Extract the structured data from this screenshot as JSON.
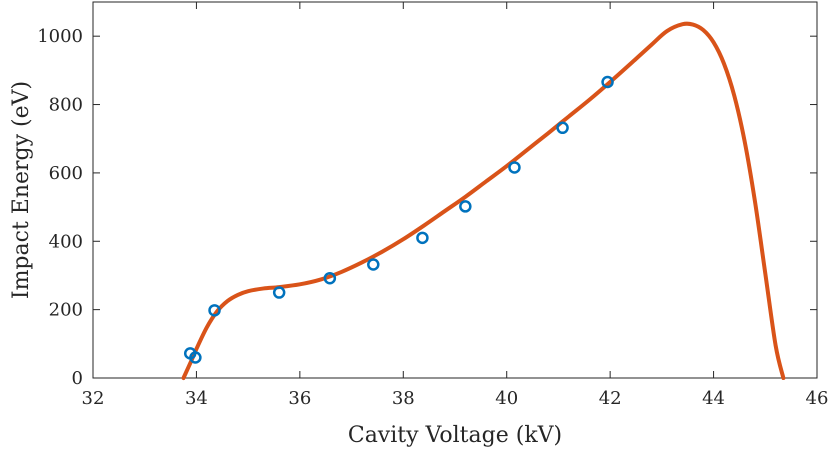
{
  "chart_data": {
    "type": "scatter",
    "title": "",
    "xlabel": "Cavity Voltage (kV)",
    "ylabel": "Impact Energy (eV)",
    "xlim": [
      32,
      46
    ],
    "ylim": [
      0,
      1100
    ],
    "xticks": [
      32,
      34,
      36,
      38,
      40,
      42,
      44,
      46
    ],
    "yticks": [
      0,
      200,
      400,
      600,
      800,
      1000
    ],
    "grid": false,
    "legend": "none",
    "series": [
      {
        "kind": "markers",
        "marker": "circle-open",
        "color": "#0072bd",
        "x": [
          33.88,
          33.98,
          34.35,
          35.6,
          36.58,
          37.42,
          38.37,
          39.2,
          40.15,
          41.08,
          41.95
        ],
        "y": [
          72,
          60,
          198,
          250,
          292,
          332,
          410,
          502,
          616,
          732,
          866
        ]
      },
      {
        "kind": "line",
        "color": "#d95319",
        "x": [
          33.75,
          33.9,
          34.0,
          34.2,
          34.4,
          34.6,
          34.8,
          35.0,
          35.3,
          35.6,
          36.0,
          36.4,
          36.8,
          37.2,
          37.6,
          38.0,
          38.4,
          38.8,
          39.2,
          39.6,
          40.0,
          40.4,
          40.8,
          41.2,
          41.6,
          42.0,
          42.4,
          42.8,
          43.1,
          43.4,
          43.6,
          43.8,
          44.0,
          44.2,
          44.4,
          44.6,
          44.8,
          45.0,
          45.2,
          45.35
        ],
        "y": [
          0,
          50,
          85,
          148,
          195,
          225,
          243,
          254,
          262,
          266,
          274,
          288,
          310,
          338,
          370,
          406,
          446,
          488,
          530,
          575,
          620,
          668,
          716,
          765,
          814,
          866,
          920,
          975,
          1015,
          1035,
          1034,
          1018,
          982,
          920,
          826,
          693,
          517,
          306,
          95,
          0
        ]
      }
    ]
  }
}
